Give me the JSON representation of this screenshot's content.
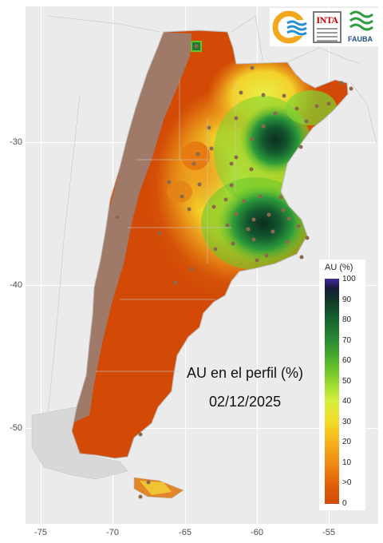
{
  "map": {
    "title": "AU en el perfil (%)",
    "date": "02/12/2025",
    "y_ticks": [
      "-30",
      "-40",
      "-50"
    ],
    "x_ticks": [
      "-75",
      "-70",
      "-65",
      "-60",
      "-55"
    ],
    "legend": {
      "title": "AU (%)",
      "labels": [
        "100",
        "90",
        "80",
        "70",
        "60",
        "50",
        "40",
        "30",
        "20",
        "10",
        ">0",
        "0"
      ]
    },
    "logos": {
      "inta": "INTA",
      "fauba": "FAUBA"
    },
    "colors": {
      "background": "#ebebeb",
      "no_data": "#a07a68",
      "dry": "#d24a06",
      "max": "#3f2ca8"
    }
  }
}
